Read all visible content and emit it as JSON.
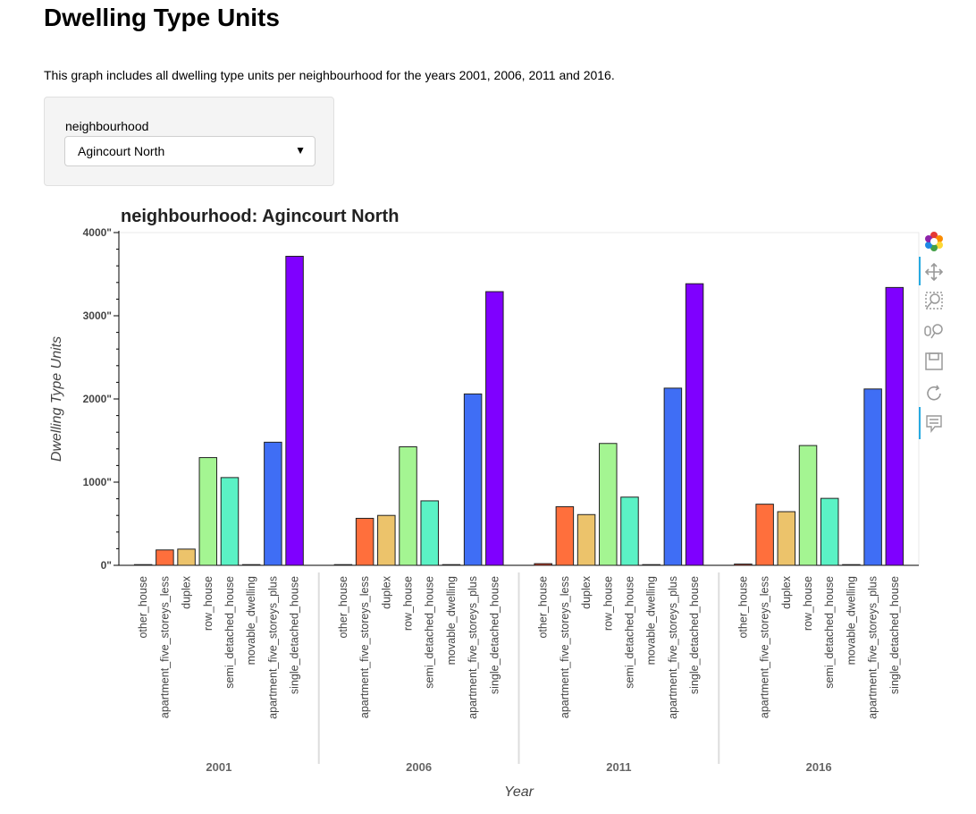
{
  "page": {
    "title": "Dwelling Type Units",
    "description": "This graph includes all dwelling type units per neighbourhood for the years 2001, 2006, 2011 and 2016."
  },
  "widget": {
    "label": "neighbourhood",
    "selected": "Agincourt North",
    "arrow": "▼"
  },
  "toolbar": {
    "icons": [
      "bokeh-logo-icon",
      "pan-icon",
      "box-zoom-icon",
      "wheel-zoom-icon",
      "save-icon",
      "reset-icon",
      "hover-icon"
    ]
  },
  "chart_data": {
    "type": "bar",
    "title": "neighbourhood: Agincourt North",
    "xlabel": "Year",
    "ylabel": "Dwelling Type Units",
    "ylim": [
      0,
      4000
    ],
    "yticks": [
      0,
      1000,
      2000,
      3000,
      4000
    ],
    "ytick_labels": [
      "0\"",
      "1000\"",
      "2000\"",
      "3000\"",
      "4000\""
    ],
    "groups": [
      "2001",
      "2006",
      "2011",
      "2016"
    ],
    "categories": [
      "other_house",
      "apartment_five_storeys_less",
      "duplex",
      "row_house",
      "semi_detached_house",
      "movable_dwelling",
      "apartment_five_storeys_plus",
      "single_detached_house"
    ],
    "colors": [
      "#e03a1e",
      "#ff6f3c",
      "#ecc36b",
      "#a4f592",
      "#5bf2c5",
      "#00c0c8",
      "#3f6ef5",
      "#7f00ff"
    ],
    "series": [
      {
        "name": "2001",
        "values": [
          0,
          185,
          195,
          1295,
          1055,
          0,
          1480,
          3715
        ]
      },
      {
        "name": "2006",
        "values": [
          0,
          565,
          600,
          1425,
          775,
          0,
          2060,
          3290
        ]
      },
      {
        "name": "2011",
        "values": [
          20,
          705,
          610,
          1465,
          820,
          0,
          2130,
          3385
        ]
      },
      {
        "name": "2016",
        "values": [
          15,
          735,
          645,
          1440,
          805,
          0,
          2120,
          3340
        ]
      }
    ]
  }
}
